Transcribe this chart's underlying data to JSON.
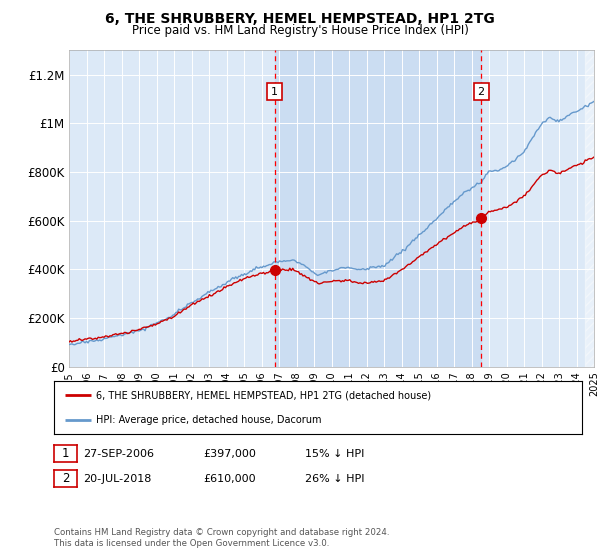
{
  "title": "6, THE SHRUBBERY, HEMEL HEMPSTEAD, HP1 2TG",
  "subtitle": "Price paid vs. HM Land Registry's House Price Index (HPI)",
  "background_color": "#ffffff",
  "plot_bg_color": "#dce9f7",
  "hpi_color": "#6699cc",
  "price_color": "#cc0000",
  "shade_color": "#c5d9f0",
  "ylim": [
    0,
    1300000
  ],
  "yticks": [
    0,
    200000,
    400000,
    600000,
    800000,
    1000000,
    1200000
  ],
  "ytick_labels": [
    "£0",
    "£200K",
    "£400K",
    "£600K",
    "£800K",
    "£1M",
    "£1.2M"
  ],
  "sale1": {
    "date_num": 2006.75,
    "price": 397000,
    "label": "1"
  },
  "sale2": {
    "date_num": 2018.55,
    "price": 610000,
    "label": "2"
  },
  "legend_line1": "6, THE SHRUBBERY, HEMEL HEMPSTEAD, HP1 2TG (detached house)",
  "legend_line2": "HPI: Average price, detached house, Dacorum",
  "table_row1": [
    "1",
    "27-SEP-2006",
    "£397,000",
    "15% ↓ HPI"
  ],
  "table_row2": [
    "2",
    "20-JUL-2018",
    "£610,000",
    "26% ↓ HPI"
  ],
  "footer": "Contains HM Land Registry data © Crown copyright and database right 2024.\nThis data is licensed under the Open Government Licence v3.0.",
  "xmin": 1995,
  "xmax": 2025
}
